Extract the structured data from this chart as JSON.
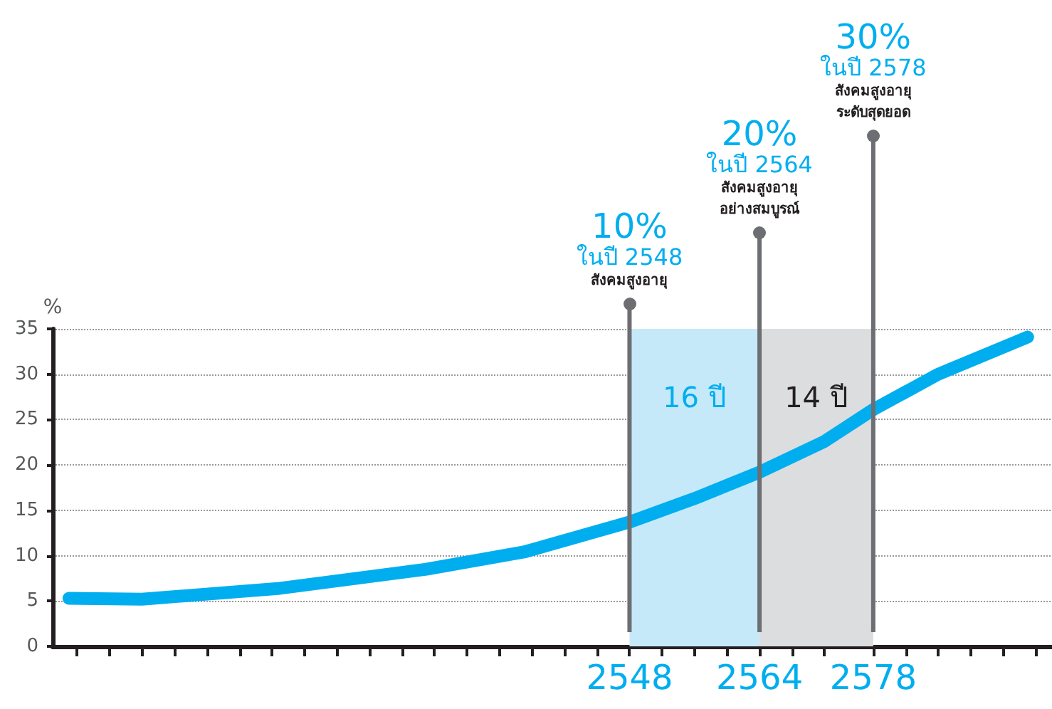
{
  "chart_data": {
    "type": "line",
    "ylabel": "%",
    "x": [
      2479,
      2488,
      2505,
      2523,
      2535,
      2548,
      2556,
      2564,
      2572,
      2578,
      2586,
      2597
    ],
    "series": [
      {
        "color": "#00aeef",
        "values": [
          5.3,
          5.2,
          6.4,
          8.5,
          10.4,
          13.7,
          16.3,
          19.2,
          22.6,
          26.1,
          30,
          34.1
        ]
      }
    ],
    "xlim": [
      2477,
      2600
    ],
    "xticks": [
      {
        "value": 2480,
        "label": null
      },
      {
        "value": 2484,
        "label": null
      },
      {
        "value": 2488,
        "label": null
      },
      {
        "value": 2492,
        "label": null
      },
      {
        "value": 2496,
        "label": null
      },
      {
        "value": 2500,
        "label": null
      },
      {
        "value": 2504,
        "label": null
      },
      {
        "value": 2508,
        "label": null
      },
      {
        "value": 2512,
        "label": null
      },
      {
        "value": 2516,
        "label": null
      },
      {
        "value": 2520,
        "label": null
      },
      {
        "value": 2524,
        "label": null
      },
      {
        "value": 2528,
        "label": null
      },
      {
        "value": 2532,
        "label": null
      },
      {
        "value": 2536,
        "label": null
      },
      {
        "value": 2540,
        "label": null
      },
      {
        "value": 2544,
        "label": null
      },
      2548,
      {
        "value": 2552,
        "label": null
      },
      {
        "value": 2556,
        "label": null
      },
      {
        "value": 2560,
        "label": null
      },
      2564,
      {
        "value": 2568,
        "label": null
      },
      {
        "value": 2572,
        "label": null
      },
      2578,
      {
        "value": 2582,
        "label": null
      },
      {
        "value": 2586,
        "label": null
      },
      {
        "value": 2590,
        "label": null
      },
      {
        "value": 2594,
        "label": null
      },
      {
        "value": 2598,
        "label": null
      }
    ],
    "ylim": [
      0,
      35
    ],
    "yticks": [
      0,
      5,
      10,
      15,
      20,
      25,
      30,
      35
    ],
    "grid": "y",
    "line_style": "solid",
    "ref_lines": [
      {
        "axis": "x",
        "value": 2548,
        "label": "10%\nในปี 2548\nสังคมสูงอายุ",
        "color": "#6d6e71"
      },
      {
        "axis": "x",
        "value": 2564,
        "label": "20%\nในปี 2564\nสังคมสูงอายุ\nอย่างสมบูรณ์",
        "color": "#6d6e71"
      },
      {
        "axis": "x",
        "value": 2578,
        "label": "30%\nในปี 2578\nสังคมสูงอายุ\nระดับสุดยอด",
        "color": "#6d6e71"
      }
    ],
    "bands": [
      {
        "axis": "x",
        "from": 2548,
        "to": 2564,
        "label": "16 ปี",
        "color": "#c6e9f9"
      },
      {
        "axis": "x",
        "from": 2564,
        "to": 2578,
        "label": "14 ปี",
        "color": "#dcdddf"
      }
    ]
  }
}
